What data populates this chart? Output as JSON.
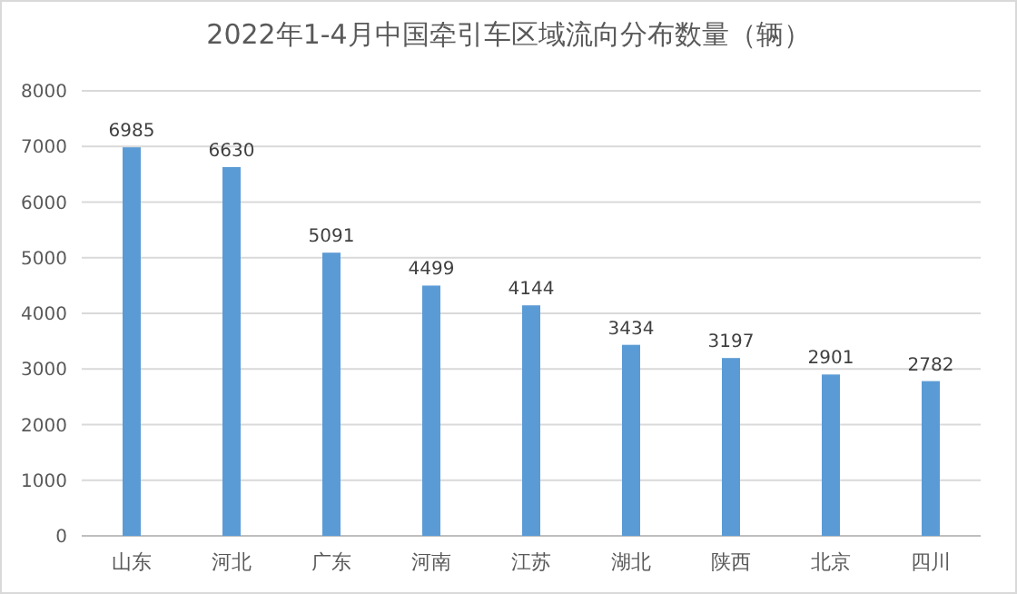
{
  "chart_data": {
    "type": "bar",
    "title": "2022年1-4月中国牵引车区域流向分布数量（辆）",
    "categories": [
      "山东",
      "河北",
      "广东",
      "河南",
      "江苏",
      "湖北",
      "陕西",
      "北京",
      "四川"
    ],
    "values": [
      6985,
      6630,
      5091,
      4499,
      4144,
      3434,
      3197,
      2901,
      2782
    ],
    "color": "#5b9bd5",
    "ylim": [
      0,
      8000
    ],
    "yticks": [
      0,
      1000,
      2000,
      3000,
      4000,
      5000,
      6000,
      7000,
      8000
    ],
    "grid": "y",
    "data_labels": true
  }
}
